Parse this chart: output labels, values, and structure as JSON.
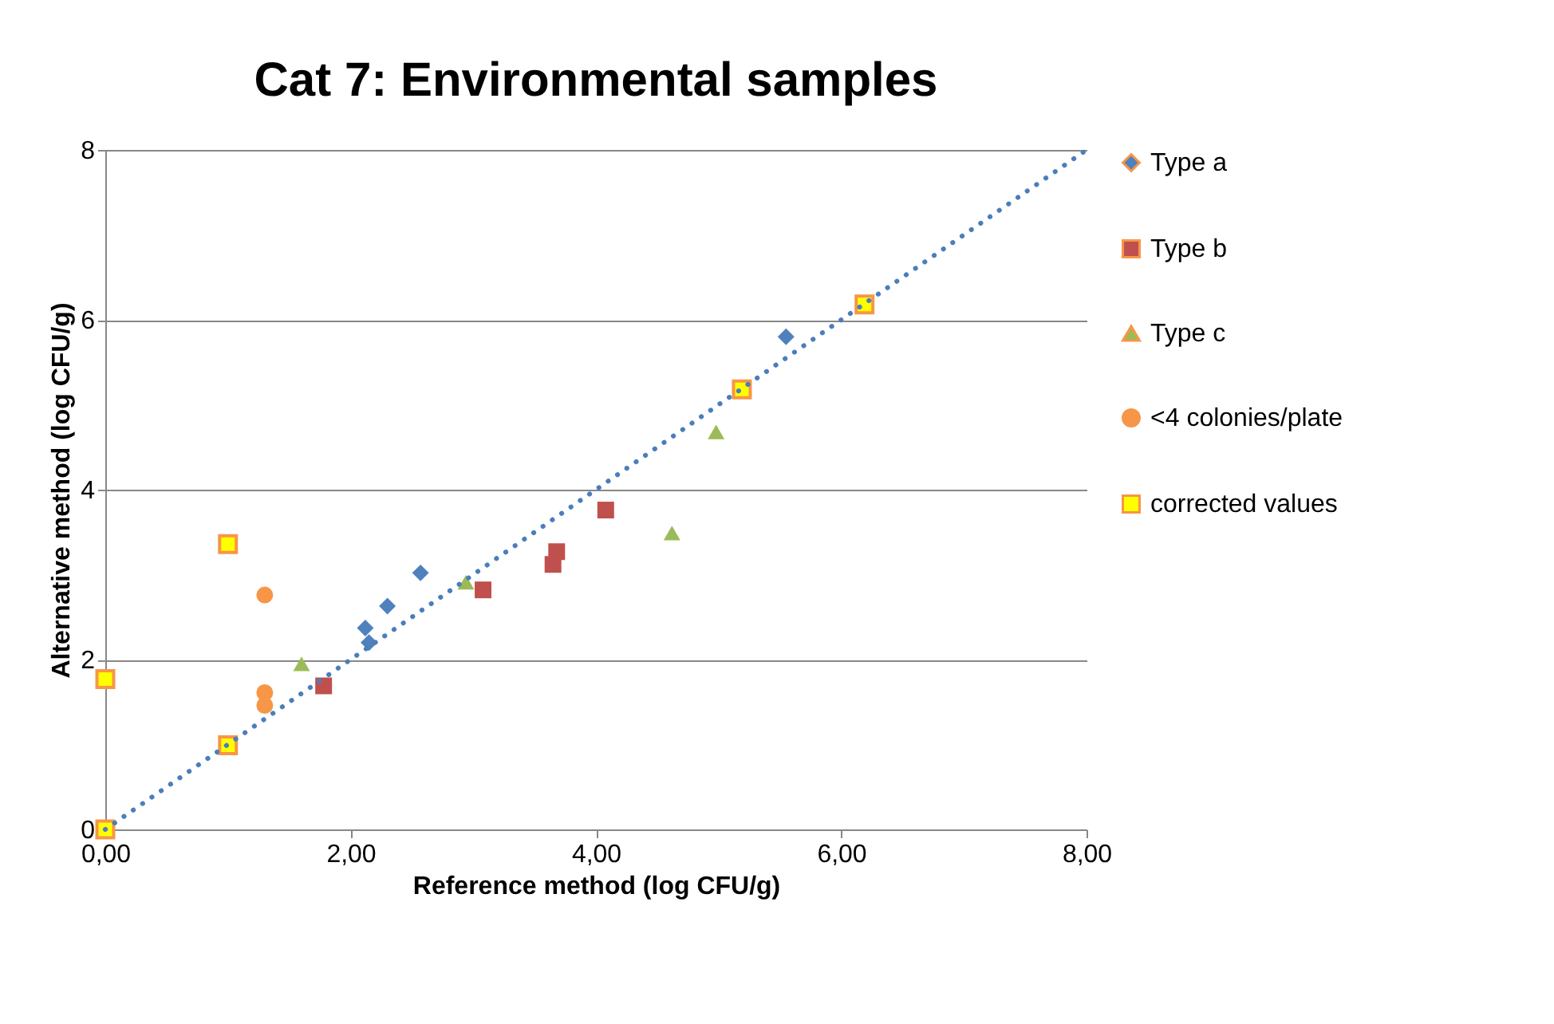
{
  "chart_data": {
    "type": "scatter",
    "title": "Cat  7: Environmental samples",
    "xlabel": "Reference method (log CFU/g)",
    "ylabel": "Alternative method (log  CFU/g)",
    "xlim": [
      0,
      8
    ],
    "ylim": [
      0,
      8
    ],
    "xticks": [
      {
        "value": 0,
        "label": "0,00"
      },
      {
        "value": 2,
        "label": "2,00"
      },
      {
        "value": 4,
        "label": "4,00"
      },
      {
        "value": 6,
        "label": "6,00"
      },
      {
        "value": 8,
        "label": "8,00"
      }
    ],
    "yticks": [
      0,
      2,
      4,
      6,
      8
    ],
    "grid": "y",
    "legend": "right",
    "series": [
      {
        "name": "Type a",
        "color": "#4f81bd",
        "marker": "diamond",
        "x": [
          2.12,
          2.15,
          2.3,
          2.57,
          5.55
        ],
        "values": [
          2.37,
          2.2,
          2.63,
          3.02,
          5.8
        ]
      },
      {
        "name": "Type b",
        "color": "#c0504d",
        "marker": "square",
        "x": [
          1.78,
          3.08,
          3.68,
          3.65,
          4.08
        ],
        "values": [
          1.69,
          2.82,
          3.27,
          3.12,
          3.76
        ]
      },
      {
        "name": "Type c",
        "color": "#9bbb59",
        "marker": "triangle",
        "x": [
          1.6,
          2.94,
          4.62,
          4.98
        ],
        "values": [
          1.95,
          2.91,
          3.49,
          4.68
        ]
      },
      {
        "name": "<4 colonies/plate",
        "color": "#f79646",
        "marker": "circle",
        "x": [
          1.3,
          1.3,
          1.3
        ],
        "values": [
          2.76,
          1.61,
          1.46
        ]
      },
      {
        "name": "corrected values",
        "color": "#ffff00",
        "marker": "square",
        "x": [
          0,
          0,
          1,
          1,
          5.19,
          6.19
        ],
        "values": [
          0,
          1.77,
          0.99,
          3.36,
          5.18,
          6.18
        ]
      },
      {
        "type": "line",
        "color": "#4a7ebb",
        "line_style": "dotted",
        "marker": "none",
        "x": [
          0,
          8
        ],
        "values": [
          0,
          8
        ]
      }
    ]
  }
}
